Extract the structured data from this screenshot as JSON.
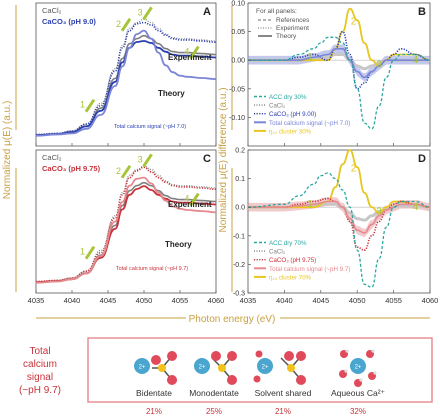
{
  "figure": {
    "ylabel_left": "Normalized μ(E) (a.u.)",
    "ylabel_right": "Normalized μ(E) difference (a.u.)",
    "xlabel": "Photon energy (eV)",
    "x_ticks": [
      "4035",
      "4040",
      "4045",
      "4050",
      "4055",
      "4060"
    ]
  },
  "chart_data": [
    {
      "panel": "A",
      "type": "line",
      "xlabel": "Photon energy (eV)",
      "ylabel": "Normalized μ(E) (a.u.)",
      "xlim": [
        4035,
        4060
      ],
      "legend": [
        "CaCl₂",
        "CaCO₃ (pH 9.0)"
      ],
      "labels": [
        "Experiment",
        "Theory",
        "Total calcium signal (~pH 7.0)"
      ],
      "markers": [
        "1",
        "2",
        "3",
        "4"
      ],
      "series": [
        {
          "name": "CaCl₂",
          "x": [
            4035,
            4038,
            4040,
            4042,
            4044,
            4046,
            4047,
            4048,
            4049,
            4050,
            4051,
            4052,
            4053,
            4054,
            4055,
            4056,
            4058,
            4060
          ],
          "y": [
            0.03,
            0.04,
            0.06,
            0.12,
            0.3,
            0.6,
            0.8,
            0.95,
            1.0,
            1.03,
            1.0,
            0.95,
            0.9,
            0.87,
            0.86,
            0.86,
            0.85,
            0.84
          ]
        },
        {
          "name": "CaCO₃ (pH 9.0)",
          "x": [
            4035,
            4038,
            4040,
            4042,
            4044,
            4046,
            4047,
            4048,
            4049,
            4050,
            4051,
            4052,
            4053,
            4054,
            4055,
            4056,
            4058,
            4060
          ],
          "y": [
            0.03,
            0.04,
            0.06,
            0.12,
            0.28,
            0.58,
            0.78,
            0.93,
            0.99,
            1.0,
            0.98,
            0.93,
            0.89,
            0.86,
            0.85,
            0.85,
            0.84,
            0.83
          ]
        },
        {
          "name": "Total calcium signal (~pH 7.0)",
          "x": [
            4035,
            4038,
            4040,
            4042,
            4044,
            4046,
            4047,
            4048,
            4049,
            4050,
            4051,
            4052,
            4053,
            4054,
            4055,
            4056,
            4058,
            4060
          ],
          "y": [
            0.02,
            0.03,
            0.04,
            0.08,
            0.2,
            0.45,
            0.62,
            0.78,
            0.9,
            0.93,
            0.86,
            0.74,
            0.63,
            0.57,
            0.54,
            0.53,
            0.52,
            0.51
          ]
        }
      ]
    },
    {
      "panel": "B",
      "type": "line",
      "xlim": [
        4035,
        4060
      ],
      "ylim": [
        -0.15,
        0.1
      ],
      "y_ticks": [
        "0.10",
        "0.05",
        "0.00",
        "-0.05",
        "-0.10"
      ],
      "legend_header": [
        "For all panels:",
        "References",
        "Experiment",
        "Theory"
      ],
      "legend": [
        "ACC dry 30%",
        "CaCl₂",
        "CaCO₃ (pH 9.00)",
        "Total calcium signal (~pH 7.0)",
        "η₁₀ cluster 30%"
      ],
      "markers": [
        "1",
        "2",
        "3",
        "4"
      ],
      "series": [
        {
          "name": "ACC dry 30%",
          "x": [
            4035,
            4040,
            4042,
            4044,
            4045,
            4046,
            4047,
            4048,
            4049,
            4050,
            4051,
            4052,
            4053,
            4054,
            4055,
            4056,
            4058,
            4060
          ],
          "y": [
            0.0,
            0.0,
            0.01,
            0.02,
            0.03,
            0.04,
            0.04,
            0.03,
            0.0,
            -0.05,
            -0.11,
            -0.12,
            -0.08,
            -0.03,
            0.0,
            0.01,
            0.01,
            0.0
          ]
        },
        {
          "name": "CaCO₃ (pH 9.00)",
          "x": [
            4035,
            4040,
            4042,
            4044,
            4046,
            4047,
            4048,
            4049,
            4050,
            4051,
            4052,
            4053,
            4054,
            4055,
            4056,
            4058,
            4060
          ],
          "y": [
            0.0,
            0.0,
            0.005,
            0.01,
            0.0,
            0.02,
            0.05,
            0.01,
            -0.05,
            -0.04,
            -0.02,
            -0.01,
            0.0,
            0.01,
            0.02,
            0.01,
            0.0
          ]
        },
        {
          "name": "Total calcium signal (~pH 7.0)",
          "x": [
            4035,
            4040,
            4042,
            4044,
            4046,
            4047,
            4048,
            4049,
            4050,
            4051,
            4052,
            4053,
            4054,
            4055,
            4056,
            4058,
            4060
          ],
          "y": [
            0.0,
            0.0,
            0.0,
            0.005,
            0.01,
            0.02,
            0.02,
            0.0,
            -0.02,
            -0.03,
            -0.02,
            -0.01,
            0.0,
            0.0,
            0.0,
            0.0,
            0.0
          ]
        },
        {
          "name": "η₁₀ cluster 30%",
          "x": [
            4035,
            4040,
            4042,
            4044,
            4046,
            4047,
            4048,
            4049,
            4050,
            4051,
            4052,
            4053,
            4054,
            4055,
            4056,
            4058,
            4060
          ],
          "y": [
            0.0,
            0.0,
            0.0,
            0.0,
            0.0,
            0.02,
            0.05,
            0.09,
            0.07,
            0.03,
            0.0,
            -0.01,
            0.0,
            0.01,
            0.01,
            0.01,
            0.0
          ]
        }
      ]
    },
    {
      "panel": "C",
      "type": "line",
      "xlim": [
        4035,
        4060
      ],
      "legend": [
        "CaCl₂",
        "CaCO₃ (pH 9.75)"
      ],
      "labels": [
        "Experiment",
        "Theory",
        "Total calcium signal (~pH 9.7)"
      ],
      "markers": [
        "1",
        "2",
        "3",
        "4"
      ],
      "series": [
        {
          "name": "CaCl₂",
          "x": [
            4035,
            4038,
            4040,
            4042,
            4044,
            4046,
            4047,
            4048,
            4049,
            4050,
            4051,
            4052,
            4053,
            4054,
            4055,
            4056,
            4058,
            4060
          ],
          "y": [
            0.03,
            0.04,
            0.06,
            0.12,
            0.3,
            0.6,
            0.8,
            0.95,
            1.0,
            1.03,
            1.0,
            0.95,
            0.9,
            0.87,
            0.86,
            0.86,
            0.85,
            0.84
          ]
        },
        {
          "name": "CaCO₃ (pH 9.75)",
          "x": [
            4035,
            4038,
            4040,
            4042,
            4044,
            4046,
            4047,
            4048,
            4049,
            4050,
            4051,
            4052,
            4053,
            4054,
            4055,
            4056,
            4058,
            4060
          ],
          "y": [
            0.03,
            0.04,
            0.06,
            0.12,
            0.28,
            0.58,
            0.78,
            0.93,
            0.99,
            1.02,
            0.98,
            0.93,
            0.89,
            0.86,
            0.85,
            0.85,
            0.84,
            0.83
          ]
        },
        {
          "name": "Total calcium signal (~pH 9.7)",
          "x": [
            4035,
            4038,
            4040,
            4042,
            4044,
            4046,
            4047,
            4048,
            4049,
            4050,
            4051,
            4052,
            4053,
            4054,
            4055,
            4056,
            4058,
            4060
          ],
          "y": [
            0.02,
            0.03,
            0.05,
            0.1,
            0.25,
            0.55,
            0.72,
            0.86,
            0.92,
            0.93,
            0.88,
            0.8,
            0.73,
            0.68,
            0.66,
            0.65,
            0.64,
            0.63
          ]
        }
      ]
    },
    {
      "panel": "D",
      "type": "line",
      "xlim": [
        4035,
        4060
      ],
      "ylim": [
        -0.3,
        0.2
      ],
      "y_ticks": [
        "0.2",
        "0.1",
        "0.0",
        "-0.1",
        "-0.2",
        "-0.3"
      ],
      "legend": [
        "ACC dry 70%",
        "CaCl₂",
        "CaCO₃ (pH 9.75)",
        "Total calcium signal (~pH 9.7)",
        "η₁₀ cluster 70%"
      ],
      "markers": [
        "1",
        "2",
        "3",
        "4"
      ],
      "series": [
        {
          "name": "ACC dry 70%",
          "x": [
            4035,
            4040,
            4042,
            4044,
            4045,
            4046,
            4047,
            4048,
            4049,
            4050,
            4051,
            4052,
            4053,
            4054,
            4055,
            4056,
            4058,
            4060
          ],
          "y": [
            0.0,
            0.01,
            0.04,
            0.08,
            0.11,
            0.12,
            0.1,
            0.06,
            0.0,
            -0.15,
            -0.27,
            -0.28,
            -0.18,
            -0.07,
            0.0,
            0.02,
            0.02,
            0.0
          ]
        },
        {
          "name": "CaCO₃ (pH 9.75)",
          "x": [
            4035,
            4040,
            4042,
            4044,
            4046,
            4047,
            4048,
            4049,
            4050,
            4051,
            4052,
            4053,
            4054,
            4055,
            4056,
            4058,
            4060
          ],
          "y": [
            0.0,
            0.0,
            0.01,
            0.02,
            0.03,
            0.02,
            0.0,
            -0.05,
            -0.14,
            -0.15,
            -0.1,
            -0.05,
            -0.01,
            0.01,
            0.02,
            0.01,
            0.0
          ]
        },
        {
          "name": "Total calcium signal (~pH 9.7)",
          "x": [
            4035,
            4040,
            4042,
            4044,
            4046,
            4047,
            4048,
            4049,
            4050,
            4051,
            4052,
            4053,
            4054,
            4055,
            4056,
            4058,
            4060
          ],
          "y": [
            0.0,
            0.0,
            0.005,
            0.01,
            0.02,
            0.02,
            0.0,
            -0.04,
            -0.08,
            -0.09,
            -0.06,
            -0.03,
            -0.01,
            0.0,
            0.01,
            0.01,
            0.0
          ]
        },
        {
          "name": "η₁₀ cluster 70%",
          "x": [
            4035,
            4040,
            4042,
            4044,
            4046,
            4047,
            4048,
            4049,
            4050,
            4051,
            4052,
            4053,
            4054,
            4055,
            4056,
            4058,
            4060
          ],
          "y": [
            0.0,
            0.0,
            0.0,
            0.0,
            0.02,
            0.07,
            0.15,
            0.2,
            0.14,
            0.05,
            0.0,
            -0.02,
            0.0,
            0.02,
            0.02,
            0.01,
            0.0
          ]
        }
      ]
    }
  ],
  "bottom": {
    "side_label": [
      "Total",
      "calcium",
      "signal",
      "(~pH 9.7)"
    ],
    "items": [
      {
        "name": "Bidentate",
        "pct": "21%"
      },
      {
        "name": "Monodentate",
        "pct": "25%"
      },
      {
        "name": "Solvent shared",
        "pct": "21%"
      },
      {
        "name": "Aqueous Ca²⁺",
        "pct": "32%"
      }
    ],
    "ion_label": "2+"
  },
  "colors": {
    "gold": "#c8a042",
    "blue": "#2a3fb0",
    "blue_light": "#7b86d8",
    "red": "#c8323a",
    "red_light": "#e58a8e",
    "teal": "#2aa7a0",
    "yellow": "#e7c620",
    "green_marker": "#a8c53a",
    "gray": "#808080",
    "ca_blue": "#4aa6cf",
    "o_red": "#e04a5a",
    "c_yellow": "#f2c21b"
  }
}
